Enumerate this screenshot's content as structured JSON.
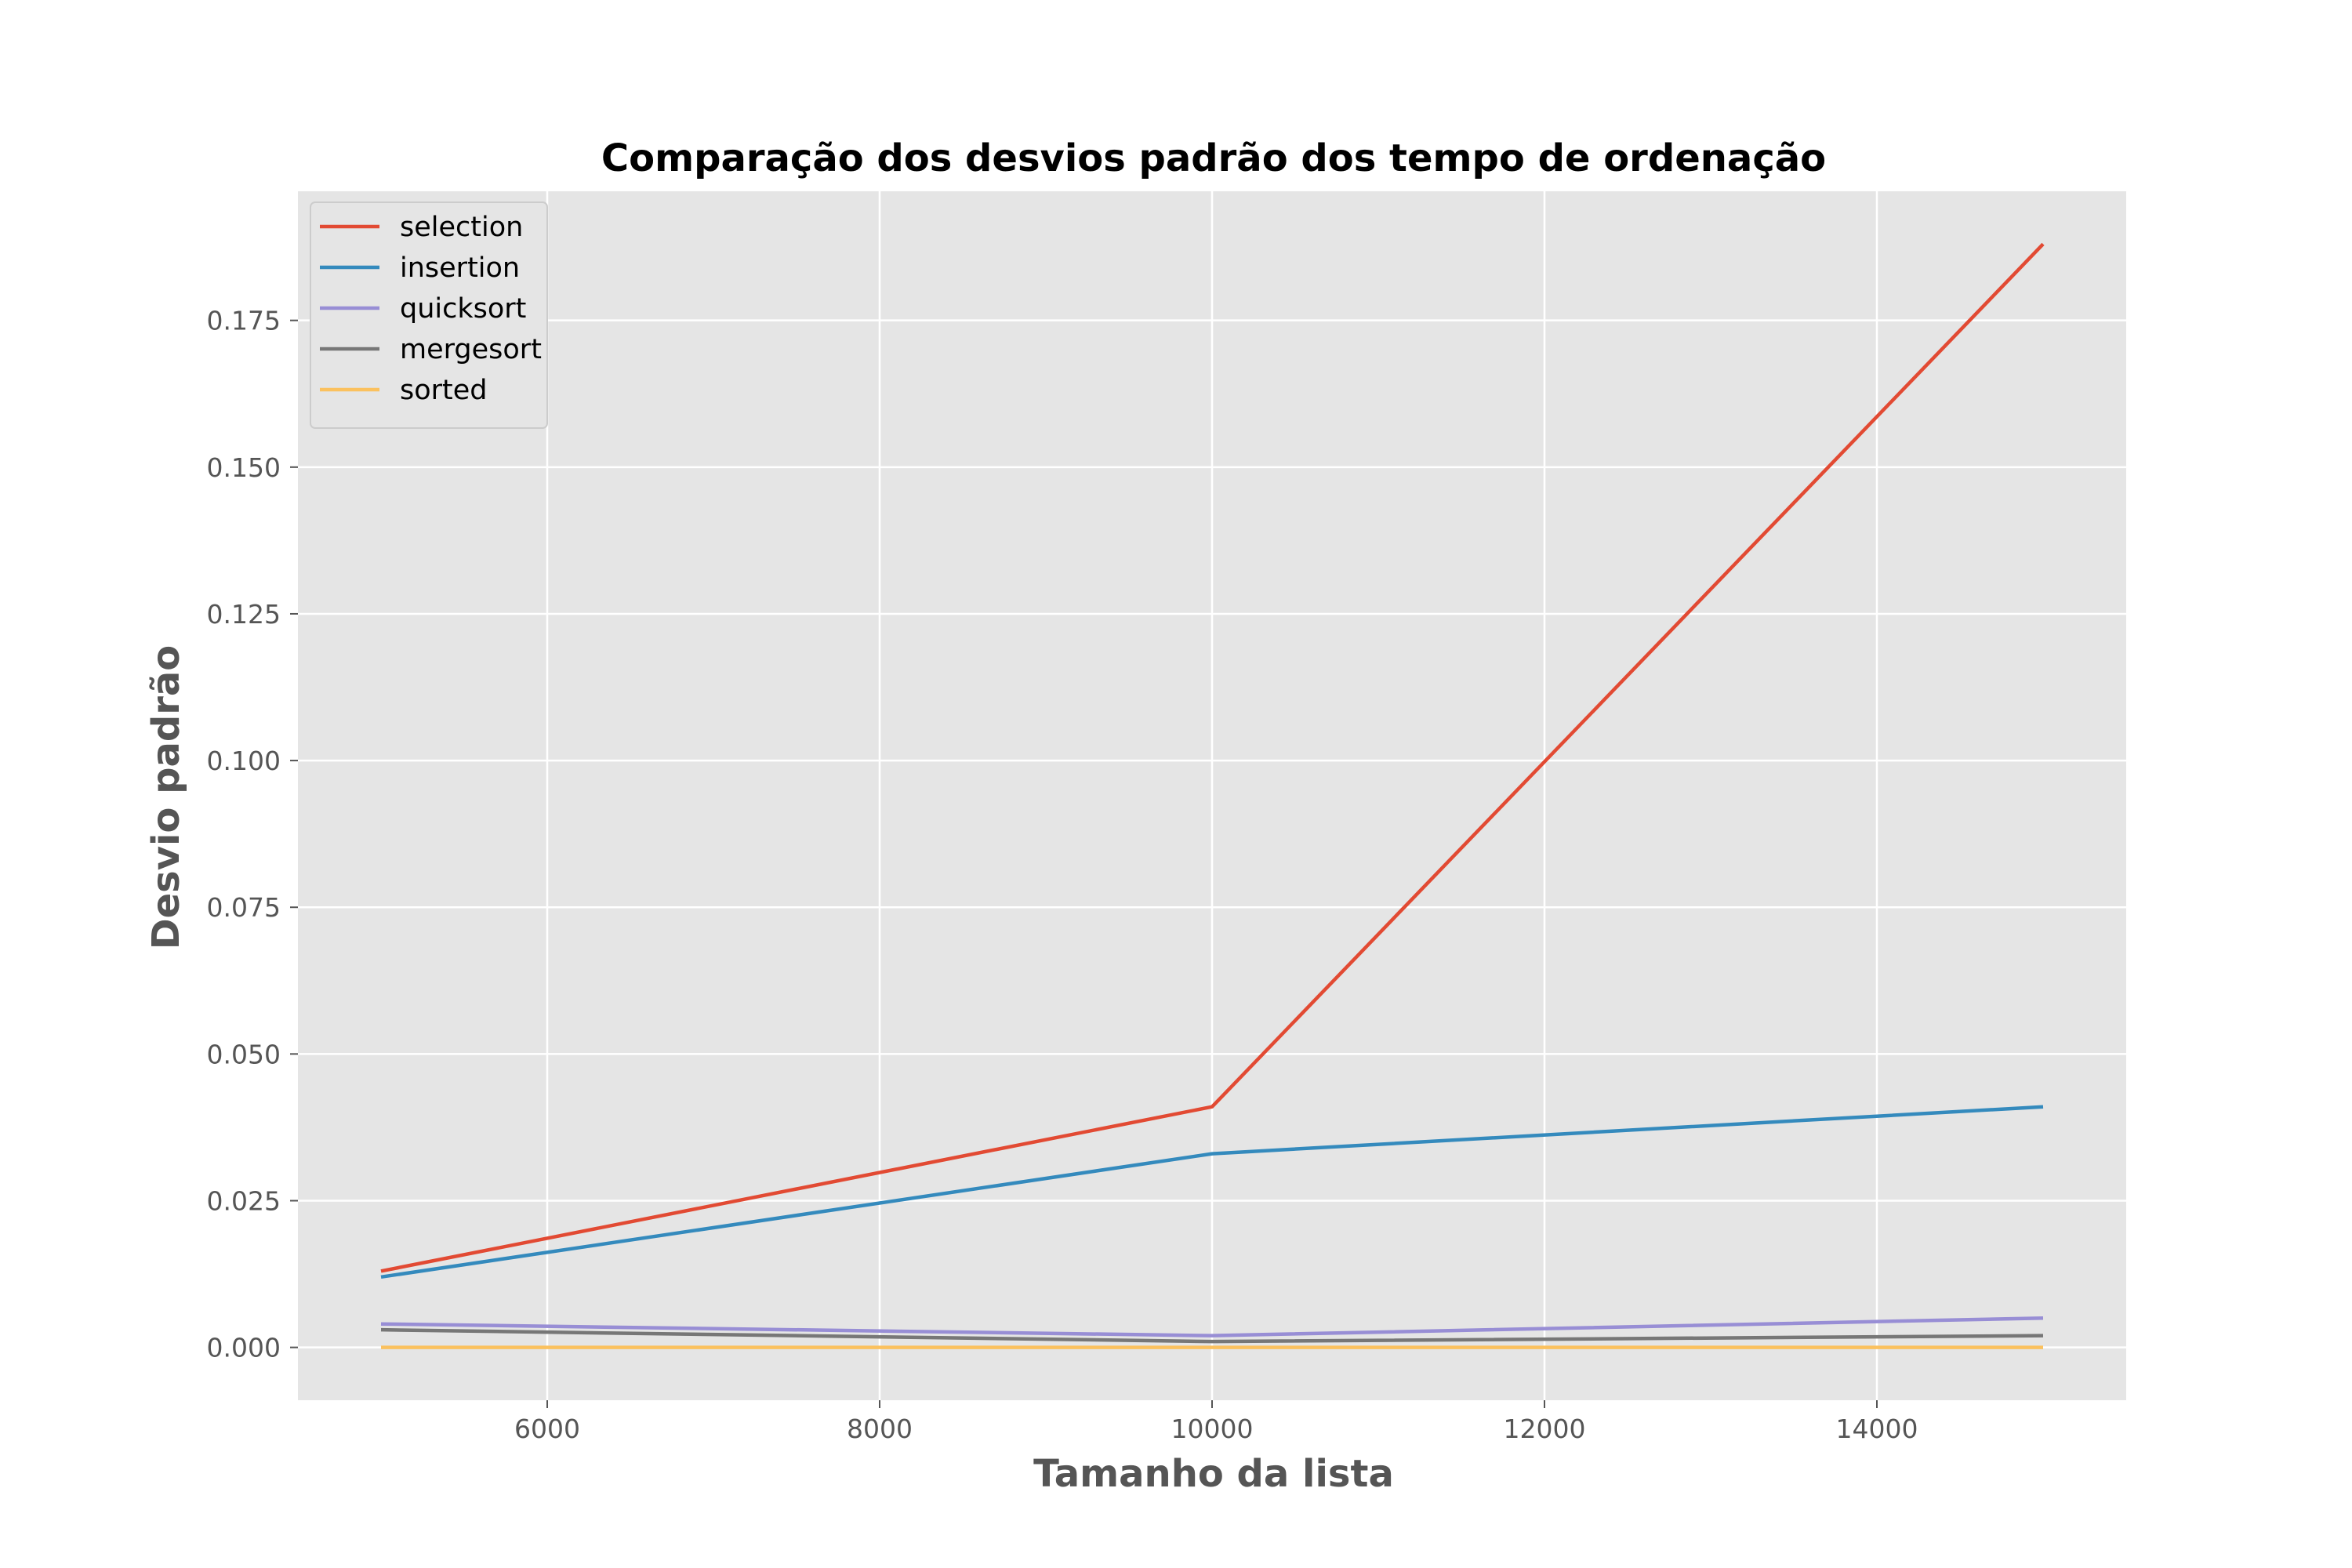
{
  "chart_data": {
    "type": "line",
    "title": "Comparação dos desvios padrão dos tempo de ordenação",
    "xlabel": "Tamanho da lista",
    "ylabel": "Desvio padrão",
    "x": [
      5000,
      10000,
      15000
    ],
    "xlim": [
      4500,
      15500
    ],
    "ylim": [
      -0.009,
      0.197
    ],
    "xticks": [
      6000,
      8000,
      10000,
      12000,
      14000
    ],
    "yticks": [
      0.0,
      0.025,
      0.05,
      0.075,
      0.1,
      0.125,
      0.15,
      0.175
    ],
    "xtick_labels": [
      "6000",
      "8000",
      "10000",
      "12000",
      "14000"
    ],
    "ytick_labels": [
      "0.000",
      "0.025",
      "0.050",
      "0.075",
      "0.100",
      "0.125",
      "0.150",
      "0.175"
    ],
    "grid": true,
    "legend_position": "top-left",
    "style": {
      "plot_background": "#e5e5e5",
      "grid_color": "#ffffff",
      "tick_color": "#555555"
    },
    "series": [
      {
        "name": "selection",
        "color": "#e24a33",
        "values": [
          0.013,
          0.041,
          0.188
        ]
      },
      {
        "name": "insertion",
        "color": "#348abd",
        "values": [
          0.012,
          0.033,
          0.041
        ]
      },
      {
        "name": "quicksort",
        "color": "#988ed5",
        "values": [
          0.004,
          0.002,
          0.005
        ]
      },
      {
        "name": "mergesort",
        "color": "#777777",
        "values": [
          0.003,
          0.001,
          0.002
        ]
      },
      {
        "name": "sorted",
        "color": "#fbc15e",
        "values": [
          0.0,
          0.0,
          0.0
        ]
      }
    ]
  }
}
